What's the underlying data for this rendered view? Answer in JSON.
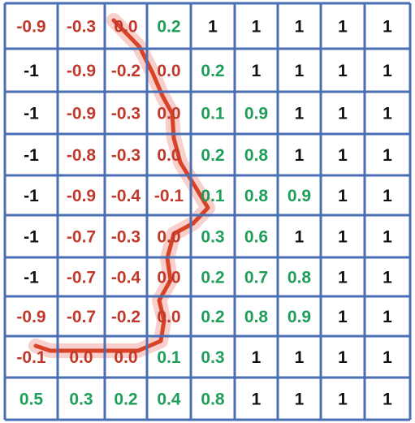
{
  "colors": {
    "grid_line": "#4a6fb5",
    "negative": "#c0392b",
    "positive": "#1f9e5a",
    "one": "#111111",
    "path": "#d84326",
    "path_glow": "#f2a8a0"
  },
  "grid": {
    "rows": [
      [
        "-0.9",
        "-0.3",
        "0.0",
        "0.2",
        "1",
        "1",
        "1",
        "1",
        "1"
      ],
      [
        "-1",
        "-0.9",
        "-0.2",
        "0.0",
        "0.2",
        "1",
        "1",
        "1",
        "1"
      ],
      [
        "-1",
        "-0.9",
        "-0.3",
        "0.0",
        "0.1",
        "0.9",
        "1",
        "1",
        "1"
      ],
      [
        "-1",
        "-0.8",
        "-0.3",
        "0.0",
        "0.2",
        "0.8",
        "1",
        "1",
        "1"
      ],
      [
        "-1",
        "-0.9",
        "-0.4",
        "-0.1",
        "0.1",
        "0.8",
        "0.9",
        "1",
        "1"
      ],
      [
        "-1",
        "-0.7",
        "-0.3",
        "0.0",
        "0.3",
        "0.6",
        "1",
        "1",
        "1"
      ],
      [
        "-1",
        "-0.7",
        "-0.4",
        "0.0",
        "0.2",
        "0.7",
        "0.8",
        "1",
        "1"
      ],
      [
        "-0.9",
        "-0.7",
        "-0.2",
        "0.0",
        "0.2",
        "0.8",
        "0.9",
        "1",
        "1"
      ],
      [
        "-0.1",
        "0.0",
        "0.0",
        "0.1",
        "0.3",
        "1",
        "1",
        "1",
        "1"
      ],
      [
        "0.5",
        "0.3",
        "0.2",
        "0.4",
        "0.8",
        "1",
        "1",
        "1",
        "1"
      ]
    ],
    "color_classes": [
      [
        "neg",
        "neg",
        "neg",
        "pos",
        "one",
        "one",
        "one",
        "one",
        "one"
      ],
      [
        "one",
        "neg",
        "neg",
        "neg",
        "pos",
        "one",
        "one",
        "one",
        "one"
      ],
      [
        "one",
        "neg",
        "neg",
        "neg",
        "pos",
        "pos",
        "one",
        "one",
        "one"
      ],
      [
        "one",
        "neg",
        "neg",
        "neg",
        "pos",
        "pos",
        "one",
        "one",
        "one"
      ],
      [
        "one",
        "neg",
        "neg",
        "neg",
        "pos",
        "pos",
        "pos",
        "one",
        "one"
      ],
      [
        "one",
        "neg",
        "neg",
        "neg",
        "pos",
        "pos",
        "one",
        "one",
        "one"
      ],
      [
        "one",
        "neg",
        "neg",
        "neg",
        "pos",
        "pos",
        "pos",
        "one",
        "one"
      ],
      [
        "neg",
        "neg",
        "neg",
        "neg",
        "pos",
        "pos",
        "pos",
        "one",
        "one"
      ],
      [
        "neg",
        "neg",
        "neg",
        "pos",
        "pos",
        "one",
        "one",
        "one",
        "one"
      ],
      [
        "pos",
        "pos",
        "pos",
        "pos",
        "pos",
        "one",
        "one",
        "one",
        "one"
      ]
    ]
  }
}
